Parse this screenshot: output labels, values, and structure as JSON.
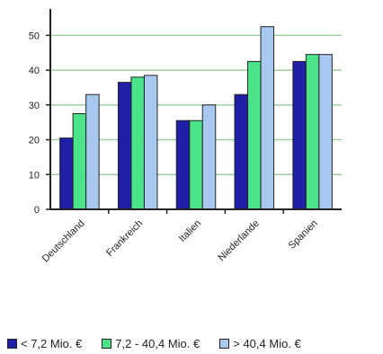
{
  "chart_data": {
    "type": "bar",
    "title": "",
    "xlabel": "",
    "ylabel": "",
    "categories": [
      "Deutschland",
      "Frankreich",
      "Italien",
      "Niederlande",
      "Spanien"
    ],
    "series": [
      {
        "name": "< 7,2 Mio. €",
        "color": "#1f1fa8",
        "values": [
          20.5,
          36.5,
          25.5,
          33,
          42.5
        ]
      },
      {
        "name": "7,2 - 40,4 Mio. €",
        "color": "#4be38a",
        "values": [
          27.5,
          38,
          25.5,
          42.5,
          44.5
        ]
      },
      {
        "name": "> 40,4 Mio. €",
        "color": "#a9c8ef",
        "values": [
          33,
          38.5,
          30,
          52.5,
          44.5
        ]
      }
    ],
    "ylim": [
      0,
      55
    ],
    "yticks": [
      0,
      10,
      20,
      30,
      40,
      50
    ],
    "grid": true,
    "legend_position": "bottom"
  }
}
